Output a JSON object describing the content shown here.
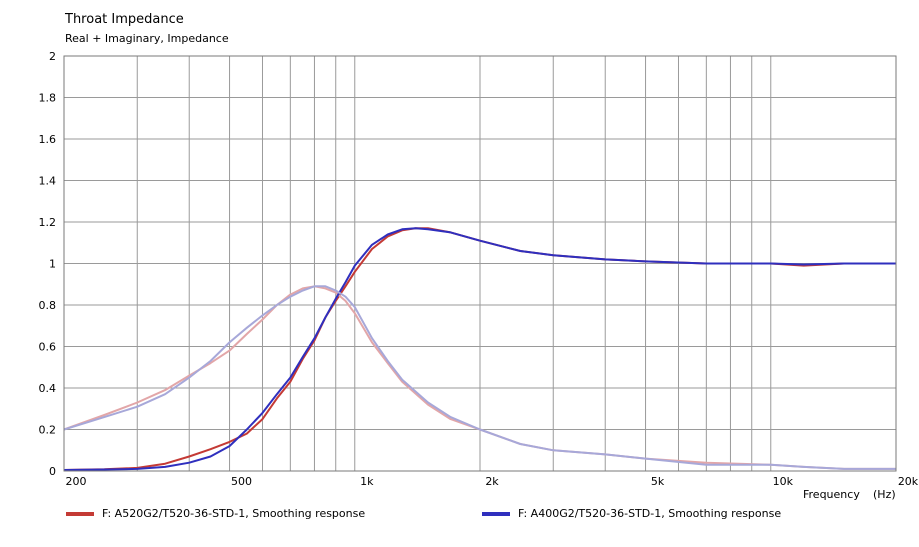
{
  "chart_data": {
    "type": "line",
    "title": "Throat Impedance",
    "subtitle": "Real + Imaginary, Impedance",
    "xlabel": "Frequency",
    "xunit": "(Hz)",
    "xscale": "log",
    "xlim": [
      200,
      20000
    ],
    "ylim": [
      0,
      2
    ],
    "grid": true,
    "legend_position": "bottom",
    "x_tick_labels": [
      {
        "value": 200,
        "label": "200"
      },
      {
        "value": 500,
        "label": "500"
      },
      {
        "value": 1000,
        "label": "1k"
      },
      {
        "value": 2000,
        "label": "2k"
      },
      {
        "value": 5000,
        "label": "5k"
      },
      {
        "value": 10000,
        "label": "10k"
      },
      {
        "value": 20000,
        "label": "20k"
      }
    ],
    "y_tick_labels": [
      {
        "value": 0,
        "label": "0"
      },
      {
        "value": 0.2,
        "label": "0.2"
      },
      {
        "value": 0.4,
        "label": "0.4"
      },
      {
        "value": 0.6,
        "label": "0.6"
      },
      {
        "value": 0.8,
        "label": "0.8"
      },
      {
        "value": 1.0,
        "label": "1"
      },
      {
        "value": 1.2,
        "label": "1.2"
      },
      {
        "value": 1.4,
        "label": "1.4"
      },
      {
        "value": 1.6,
        "label": "1.6"
      },
      {
        "value": 1.8,
        "label": "1.8"
      },
      {
        "value": 2.0,
        "label": "2"
      }
    ],
    "series": [
      {
        "name": "F: A520G2/T520-36-STD-1, Smoothing response",
        "component": "real",
        "color": "#c43a35",
        "x": [
          200,
          250,
          300,
          350,
          400,
          450,
          500,
          550,
          600,
          650,
          700,
          750,
          800,
          850,
          900,
          950,
          1000,
          1100,
          1200,
          1300,
          1400,
          1500,
          1700,
          2000,
          2500,
          3000,
          4000,
          5000,
          7000,
          10000,
          12000,
          15000,
          20000
        ],
        "values": [
          0.005,
          0.008,
          0.015,
          0.035,
          0.07,
          0.105,
          0.14,
          0.18,
          0.25,
          0.35,
          0.43,
          0.54,
          0.63,
          0.74,
          0.82,
          0.89,
          0.96,
          1.07,
          1.13,
          1.16,
          1.17,
          1.17,
          1.15,
          1.11,
          1.06,
          1.04,
          1.02,
          1.01,
          1.0,
          1.0,
          0.99,
          1.0,
          1.0
        ]
      },
      {
        "name": "F: A520G2/T520-36-STD-1, Smoothing response",
        "component": "imaginary",
        "color": "#e2a6a8",
        "x": [
          200,
          250,
          300,
          350,
          400,
          450,
          500,
          550,
          600,
          650,
          700,
          750,
          800,
          850,
          900,
          950,
          1000,
          1100,
          1200,
          1300,
          1500,
          1700,
          2000,
          2500,
          3000,
          4000,
          5000,
          7000,
          10000,
          12000,
          15000,
          20000
        ],
        "values": [
          0.2,
          0.27,
          0.33,
          0.39,
          0.46,
          0.52,
          0.58,
          0.66,
          0.73,
          0.8,
          0.85,
          0.88,
          0.89,
          0.88,
          0.86,
          0.82,
          0.76,
          0.62,
          0.52,
          0.43,
          0.32,
          0.25,
          0.2,
          0.13,
          0.1,
          0.08,
          0.06,
          0.04,
          0.03,
          0.02,
          0.01,
          0.01
        ]
      },
      {
        "name": "F: A400G2/T520-36-STD-1, Smoothing response",
        "component": "real",
        "color": "#2f2fbe",
        "x": [
          200,
          250,
          300,
          350,
          400,
          450,
          500,
          550,
          600,
          650,
          700,
          750,
          800,
          850,
          900,
          950,
          1000,
          1100,
          1200,
          1300,
          1400,
          1500,
          1700,
          2000,
          2500,
          3000,
          4000,
          5000,
          7000,
          10000,
          12000,
          15000,
          20000
        ],
        "values": [
          0.005,
          0.007,
          0.01,
          0.02,
          0.04,
          0.07,
          0.12,
          0.2,
          0.28,
          0.37,
          0.45,
          0.55,
          0.64,
          0.74,
          0.83,
          0.91,
          0.99,
          1.09,
          1.14,
          1.165,
          1.17,
          1.165,
          1.15,
          1.11,
          1.06,
          1.04,
          1.02,
          1.01,
          1.0,
          1.0,
          0.995,
          1.0,
          1.0
        ]
      },
      {
        "name": "F: A400G2/T520-36-STD-1, Smoothing response",
        "component": "imaginary",
        "color": "#a7a8d9",
        "x": [
          200,
          250,
          300,
          350,
          400,
          450,
          500,
          550,
          600,
          650,
          700,
          750,
          800,
          850,
          900,
          950,
          1000,
          1100,
          1200,
          1300,
          1500,
          1700,
          2000,
          2500,
          3000,
          4000,
          5000,
          7000,
          10000,
          12000,
          15000,
          20000
        ],
        "values": [
          0.2,
          0.26,
          0.31,
          0.37,
          0.45,
          0.53,
          0.62,
          0.69,
          0.75,
          0.8,
          0.84,
          0.87,
          0.89,
          0.89,
          0.87,
          0.84,
          0.79,
          0.64,
          0.53,
          0.44,
          0.33,
          0.26,
          0.2,
          0.13,
          0.1,
          0.08,
          0.06,
          0.03,
          0.03,
          0.02,
          0.01,
          0.01
        ]
      }
    ]
  },
  "legend": [
    {
      "label": "F: A520G2/T520-36-STD-1, Smoothing response",
      "color": "#c43a35"
    },
    {
      "label": "F: A400G2/T520-36-STD-1, Smoothing response",
      "color": "#2f2fbe"
    }
  ]
}
